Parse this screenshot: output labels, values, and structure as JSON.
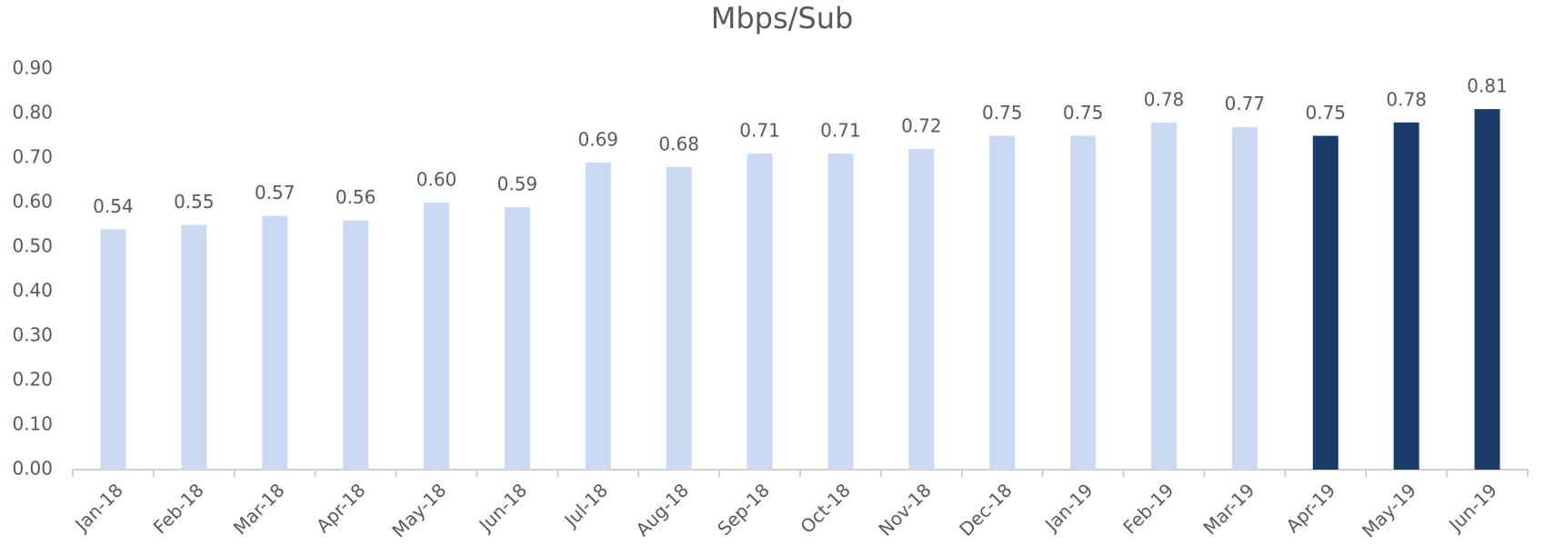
{
  "chart_data": {
    "type": "bar",
    "title": "Mbps/Sub",
    "categories": [
      "Jan-18",
      "Feb-18",
      "Mar-18",
      "Apr-18",
      "May-18",
      "Jun-18",
      "Jul-18",
      "Aug-18",
      "Sep-18",
      "Oct-18",
      "Nov-18",
      "Dec-18",
      "Jan-19",
      "Feb-19",
      "Mar-19",
      "Apr-19",
      "May-19",
      "Jun-19"
    ],
    "values": [
      0.54,
      0.55,
      0.57,
      0.56,
      0.6,
      0.59,
      0.69,
      0.68,
      0.71,
      0.71,
      0.72,
      0.75,
      0.75,
      0.78,
      0.77,
      0.75,
      0.78,
      0.81
    ],
    "value_labels": [
      "0.54",
      "0.55",
      "0.57",
      "0.56",
      "0.60",
      "0.59",
      "0.69",
      "0.68",
      "0.71",
      "0.71",
      "0.72",
      "0.75",
      "0.75",
      "0.78",
      "0.77",
      "0.75",
      "0.78",
      "0.81"
    ],
    "colors": [
      "#c9daf2",
      "#c9daf2",
      "#c9daf2",
      "#c9daf2",
      "#c9daf2",
      "#c9daf2",
      "#c9daf2",
      "#c9daf2",
      "#c9daf2",
      "#c9daf2",
      "#c9daf2",
      "#c9daf2",
      "#c9daf2",
      "#c9daf2",
      "#c9daf2",
      "#1a3c6b",
      "#1a3c6b",
      "#1a3c6b"
    ],
    "ylim": [
      0,
      0.9
    ],
    "yticks": [
      {
        "value": 0,
        "label": "0.00"
      },
      {
        "value": 0.1,
        "label": "0.10"
      },
      {
        "value": 0.2,
        "label": "0.20"
      },
      {
        "value": 0.3,
        "label": "0.30"
      },
      {
        "value": 0.4,
        "label": "0.40"
      },
      {
        "value": 0.5,
        "label": "0.50"
      },
      {
        "value": 0.6,
        "label": "0.60"
      },
      {
        "value": 0.7,
        "label": "0.70"
      },
      {
        "value": 0.8,
        "label": "0.80"
      },
      {
        "value": 0.9,
        "label": "0.90"
      }
    ],
    "grid": false
  }
}
